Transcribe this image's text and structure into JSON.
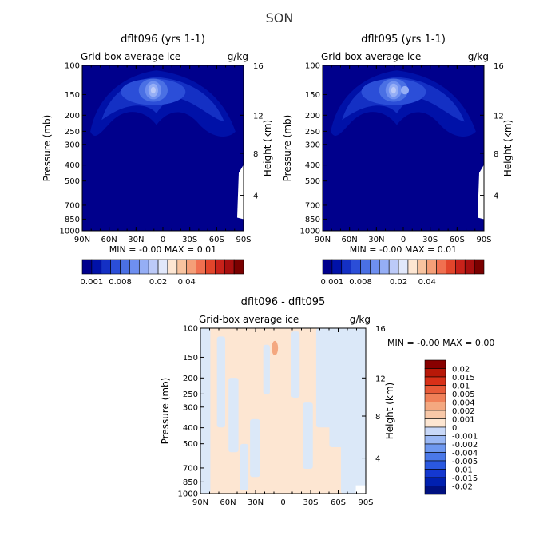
{
  "page_title": "SON",
  "colors": {
    "blue_seq": [
      "#00008c",
      "#0011a8",
      "#1430c4",
      "#2b4ed8",
      "#4a70e4",
      "#6e8ff0",
      "#95aef5",
      "#bccaf8",
      "#e1e8fb",
      "#fde6d2",
      "#f8c4a0",
      "#f49f78",
      "#f07050",
      "#e2452b",
      "#c8221a",
      "#a80f0f",
      "#7a0000"
    ],
    "diff_fill": {
      "pos": "#fde6d2",
      "neg": "#dbe8f8"
    },
    "diff_seq": [
      "#001080",
      "#0020b0",
      "#1438d0",
      "#2a58e0",
      "#4a78e8",
      "#6e98f0",
      "#9ab8f5",
      "#c8d8f8",
      "#fde6d2",
      "#f8c8a8",
      "#f4a880",
      "#f08058",
      "#e85a38",
      "#d83018",
      "#b81808",
      "#880000"
    ]
  },
  "chart_data": [
    {
      "type": "heatmap",
      "title": "dflt096 (yrs 1-1)",
      "subtitle_left": "Grid-box average ice",
      "subtitle_right": "g/kg",
      "ylabel": "Pressure (mb)",
      "ylabel_right": "Height (km)",
      "x_ticks": [
        "90N",
        "60N",
        "30N",
        "0",
        "30S",
        "60S",
        "90S"
      ],
      "y_ticks": [
        "100",
        "150",
        "200",
        "250",
        "300",
        "400",
        "500",
        "700",
        "850",
        "1000"
      ],
      "y_right_ticks": [
        "16",
        "12",
        "8",
        "4"
      ],
      "min_max": "MIN =   -0.00   MAX =    0.01",
      "colorbar_labels": [
        "0.001",
        "0.008",
        "0.02",
        "0.04"
      ],
      "ylim": [
        1000,
        100
      ],
      "xlim": [
        90,
        -90
      ],
      "log_pressure": true
    },
    {
      "type": "heatmap",
      "title": "dflt095 (yrs 1-1)",
      "subtitle_left": "Grid-box average ice",
      "subtitle_right": "g/kg",
      "ylabel": "Pressure (mb)",
      "ylabel_right": "Height (km)",
      "x_ticks": [
        "90N",
        "60N",
        "30N",
        "0",
        "30S",
        "60S",
        "90S"
      ],
      "y_ticks": [
        "100",
        "150",
        "200",
        "250",
        "300",
        "400",
        "500",
        "700",
        "850",
        "1000"
      ],
      "y_right_ticks": [
        "16",
        "12",
        "8",
        "4"
      ],
      "min_max": "MIN =   -0.00   MAX =    0.01",
      "colorbar_labels": [
        "0.001",
        "0.008",
        "0.02",
        "0.04"
      ],
      "ylim": [
        1000,
        100
      ],
      "xlim": [
        90,
        -90
      ],
      "log_pressure": true
    },
    {
      "type": "heatmap",
      "title": "dflt096 - dflt095",
      "subtitle_left": "Grid-box average ice",
      "subtitle_right": "g/kg",
      "ylabel": "Pressure (mb)",
      "ylabel_right": "Height (km)",
      "x_ticks": [
        "90N",
        "60N",
        "30N",
        "0",
        "30S",
        "60S",
        "90S"
      ],
      "y_ticks": [
        "100",
        "150",
        "200",
        "250",
        "300",
        "400",
        "500",
        "700",
        "850",
        "1000"
      ],
      "y_right_ticks": [
        "16",
        "12",
        "8",
        "4"
      ],
      "min_max": "MIN =   -0.00   MAX =    0.00",
      "colorbar_labels": [
        "0.02",
        "0.015",
        "0.01",
        "0.005",
        "0.004",
        "0.002",
        "0.001",
        "0",
        "-0.001",
        "-0.002",
        "-0.004",
        "-0.005",
        "-0.01",
        "-0.015",
        "-0.02"
      ],
      "ylim": [
        1000,
        100
      ],
      "xlim": [
        90,
        -90
      ],
      "log_pressure": true
    }
  ]
}
